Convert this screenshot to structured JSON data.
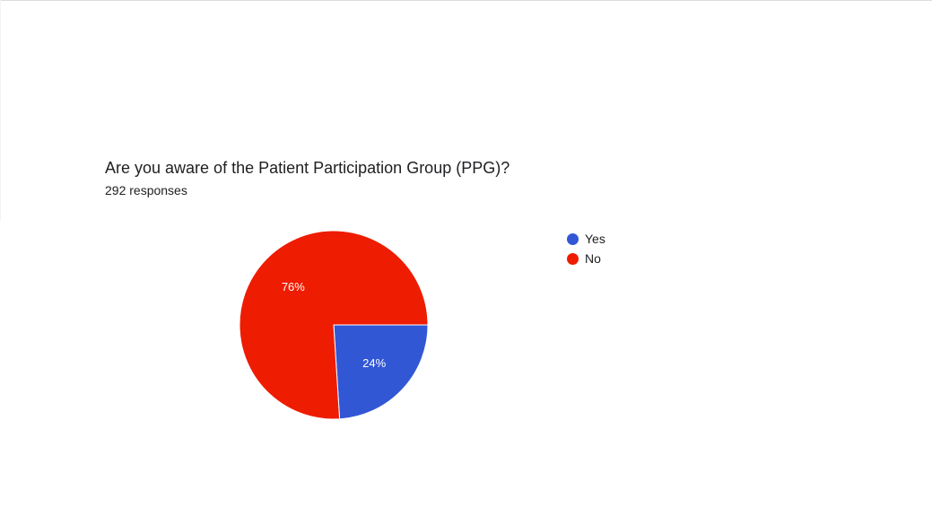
{
  "question": {
    "title": "Are you aware of the Patient Participation Group (PPG)?",
    "responses": "292 responses"
  },
  "chart_data": {
    "type": "pie",
    "categories": [
      "Yes",
      "No"
    ],
    "values": [
      24,
      76
    ],
    "value_labels": [
      "24%",
      "76%"
    ],
    "colors": [
      "#3157d5",
      "#ee1c00"
    ],
    "legend_position": "right",
    "start_angle_deg": 90,
    "direction": "clockwise"
  }
}
